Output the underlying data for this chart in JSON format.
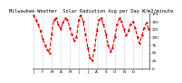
{
  "title": "Milwaukee Weather  Solar Radiation Avg per Day W/m2/minute",
  "y_values": [
    170,
    155,
    140,
    120,
    95,
    75,
    60,
    50,
    110,
    155,
    160,
    140,
    125,
    145,
    160,
    155,
    130,
    110,
    90,
    100,
    155,
    170,
    150,
    110,
    65,
    35,
    25,
    60,
    120,
    155,
    160,
    140,
    110,
    75,
    55,
    65,
    100,
    140,
    160,
    150,
    125,
    105,
    120,
    140,
    150,
    130,
    100,
    80,
    105,
    130,
    145,
    125
  ],
  "line_color": "#dd0000",
  "line_style": "--",
  "line_width": 0.8,
  "marker": ".",
  "marker_size": 1.5,
  "bg_color": "#ffffff",
  "grid_color": "#999999",
  "grid_style": ":",
  "ylim": [
    0,
    175
  ],
  "yticks": [
    0,
    25,
    50,
    75,
    100,
    125,
    150,
    175
  ],
  "ylabel_fontsize": 3.0,
  "title_fontsize": 3.8,
  "xlabel_fontsize": 3.0,
  "x_tick_positions": [
    1,
    5,
    9,
    13,
    17,
    21,
    25,
    29,
    33,
    37,
    41,
    45,
    49
  ],
  "x_tick_labels": [
    "J",
    "F",
    "M",
    "A",
    "M",
    "J",
    "J",
    "A",
    "S",
    "O",
    "N",
    "D",
    ""
  ],
  "vgrid_positions": [
    1,
    5,
    9,
    13,
    17,
    21,
    25,
    29,
    33,
    37,
    41,
    45,
    49
  ]
}
